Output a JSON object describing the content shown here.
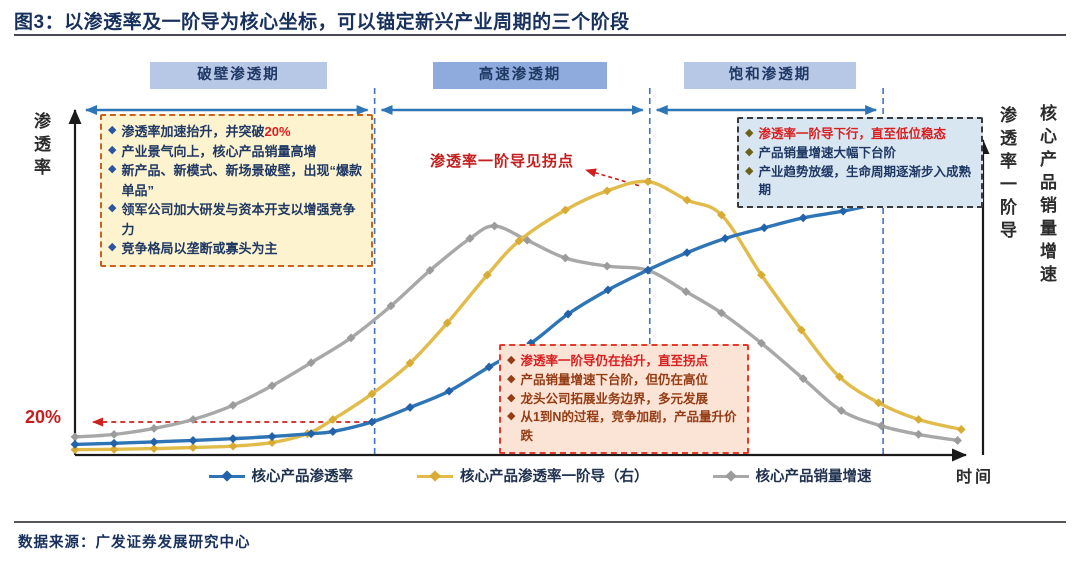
{
  "figure": {
    "title": "图3：以渗透率及一阶导为核心坐标，可以锚定新兴产业周期的三个阶段",
    "source": "数据来源：广发证券发展研究中心"
  },
  "phases": [
    {
      "label": "破壁渗透期"
    },
    {
      "label": "高速渗透期"
    },
    {
      "label": "饱和渗透期"
    }
  ],
  "callouts": {
    "breakthrough": {
      "items": [
        {
          "text": "渗透率加速抬升，并突破",
          "em": "20%"
        },
        {
          "text": "产业景气向上，核心产品销量高增"
        },
        {
          "text": "新产品、新模式、新场景破壁，出现“爆款单品”"
        },
        {
          "text": "领军公司加大研发与资本开支以增强竞争力"
        },
        {
          "text": "竞争格局以垄断或寡头为主"
        }
      ]
    },
    "highspeed": {
      "items": [
        {
          "text": "渗透率一阶导仍在抬升，直至拐点"
        },
        {
          "text": "产品销量增速下台阶，但仍在高位"
        },
        {
          "text": "龙头公司拓展业务边界，多元发展"
        },
        {
          "text": "从1到N的过程，竞争加剧，产品量升价跌"
        }
      ]
    },
    "saturation": {
      "items": [
        {
          "text": "渗透率一阶导下行，直至低位稳态"
        },
        {
          "text": "产品销量增速大幅下台阶"
        },
        {
          "text": "产业趋势放缓，生命周期逐渐步入成熟期"
        }
      ]
    }
  },
  "chart_data": {
    "type": "line",
    "title": "以渗透率及一阶导为核心坐标，可以锚定新兴产业周期的三个阶段",
    "xlabel": "时间",
    "ylabel_left": "渗透率",
    "ylabel_right_inner": "渗透率一阶导",
    "ylabel_right_outer": "核心产品销量增速",
    "x_range": [
      0,
      100
    ],
    "y_range": [
      0,
      1
    ],
    "grid": false,
    "legend_position": "bottom",
    "threshold": {
      "label": "20%",
      "y": 0.093,
      "x_end": 32.3
    },
    "phase_boundaries_x": [
      33,
      63.3,
      89
    ],
    "annotations": [
      {
        "text": "渗透率一阶导见拐点",
        "points_to": "yellow-peak"
      }
    ],
    "accent_colors": {
      "red": "#cf1f1f",
      "arrow_blue": "#2e75b6",
      "dashed_blue": "#4472c4",
      "axis": "#1a1a1a"
    },
    "series": [
      {
        "name": "核心产品渗透率",
        "axis": "left",
        "color": "#2e75b6",
        "marker_color": "#2361a9",
        "points": [
          [
            0,
            0.03
          ],
          [
            4.3,
            0.033
          ],
          [
            8.7,
            0.037
          ],
          [
            13,
            0.041
          ],
          [
            17.4,
            0.046
          ],
          [
            21.7,
            0.052
          ],
          [
            26,
            0.06
          ],
          [
            28.4,
            0.066
          ],
          [
            32.7,
            0.093
          ],
          [
            36.9,
            0.134
          ],
          [
            41.2,
            0.18
          ],
          [
            45.6,
            0.248
          ],
          [
            50.2,
            0.315
          ],
          [
            54.3,
            0.397
          ],
          [
            58.7,
            0.465
          ],
          [
            63.1,
            0.521
          ],
          [
            67.4,
            0.57
          ],
          [
            71.6,
            0.61
          ],
          [
            75.9,
            0.64
          ],
          [
            80.2,
            0.668
          ],
          [
            84.6,
            0.687
          ],
          [
            89.1,
            0.71
          ],
          [
            93,
            0.722
          ],
          [
            97.5,
            0.731
          ]
        ]
      },
      {
        "name": "核心产品渗透率一阶导（右）",
        "axis": "right",
        "color": "#e2bc4a",
        "marker_color": "#d8ab35",
        "points": [
          [
            0,
            0.015
          ],
          [
            4.3,
            0.016
          ],
          [
            8.7,
            0.018
          ],
          [
            13,
            0.021
          ],
          [
            17.4,
            0.025
          ],
          [
            21.7,
            0.035
          ],
          [
            25.6,
            0.06
          ],
          [
            28.4,
            0.1
          ],
          [
            32.7,
            0.172
          ],
          [
            36.9,
            0.259
          ],
          [
            41,
            0.372
          ],
          [
            45.4,
            0.507
          ],
          [
            48.9,
            0.603
          ],
          [
            54,
            0.69
          ],
          [
            58.6,
            0.744
          ],
          [
            63.1,
            0.77
          ],
          [
            67.4,
            0.718
          ],
          [
            71.2,
            0.676
          ],
          [
            75.6,
            0.507
          ],
          [
            80,
            0.352
          ],
          [
            84.2,
            0.22
          ],
          [
            88.5,
            0.147
          ],
          [
            92.9,
            0.1
          ],
          [
            97.6,
            0.072
          ]
        ]
      },
      {
        "name": "核心产品销量增速",
        "axis": "right",
        "color": "#a8a8a8",
        "marker_color": "#9b9b9b",
        "points": [
          [
            0,
            0.051
          ],
          [
            4.3,
            0.058
          ],
          [
            8.7,
            0.075
          ],
          [
            13,
            0.1
          ],
          [
            17.4,
            0.14
          ],
          [
            21.7,
            0.195
          ],
          [
            26,
            0.26
          ],
          [
            30.4,
            0.33
          ],
          [
            34.8,
            0.42
          ],
          [
            39.1,
            0.52
          ],
          [
            43.5,
            0.61
          ],
          [
            46.2,
            0.645
          ],
          [
            49.8,
            0.605
          ],
          [
            54,
            0.555
          ],
          [
            58.6,
            0.532
          ],
          [
            63.1,
            0.52
          ],
          [
            67.3,
            0.46
          ],
          [
            71.2,
            0.4
          ],
          [
            75.6,
            0.315
          ],
          [
            80.2,
            0.215
          ],
          [
            84.4,
            0.125
          ],
          [
            88.8,
            0.082
          ],
          [
            92.9,
            0.058
          ],
          [
            97.2,
            0.041
          ]
        ]
      }
    ]
  }
}
